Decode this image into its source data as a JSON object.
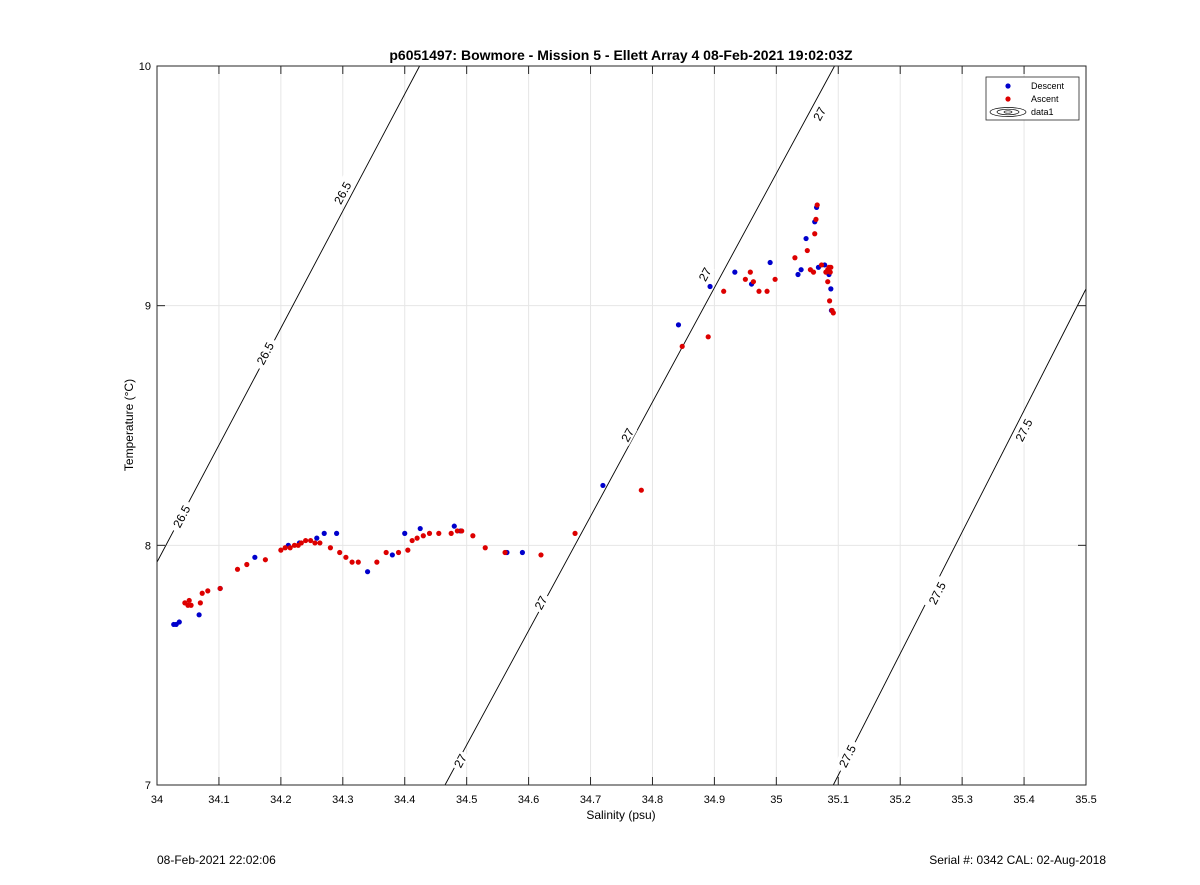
{
  "chart_data": {
    "type": "scatter",
    "title": "p6051497: Bowmore - Mission 5 - Ellett Array 4 08-Feb-2021 19:02:03Z",
    "xlabel": "Salinity (psu)",
    "ylabel": "Temperature (°C)",
    "xlim": [
      34,
      35.5
    ],
    "ylim": [
      7,
      10
    ],
    "xticks": [
      34,
      34.1,
      34.2,
      34.3,
      34.4,
      34.5,
      34.6,
      34.7,
      34.8,
      34.9,
      35,
      35.1,
      35.2,
      35.3,
      35.4,
      35.5
    ],
    "xtick_labels": [
      "34",
      "34.1",
      "34.2",
      "34.3",
      "34.4",
      "34.5",
      "34.6",
      "34.7",
      "34.8",
      "34.9",
      "35",
      "35.1",
      "35.2",
      "35.3",
      "35.4",
      "35.5"
    ],
    "yticks": [
      7,
      8,
      9,
      10
    ],
    "ytick_labels": [
      "7",
      "8",
      "9",
      "10"
    ],
    "grid": true,
    "legend_position": "top-right",
    "legend": [
      "Descent",
      "Ascent",
      "data1"
    ],
    "series": [
      {
        "name": "Descent",
        "color": "#0000cc",
        "points": [
          [
            34.027,
            7.67
          ],
          [
            34.031,
            7.67
          ],
          [
            34.036,
            7.68
          ],
          [
            34.068,
            7.71
          ],
          [
            34.102,
            7.82
          ],
          [
            34.158,
            7.95
          ],
          [
            34.212,
            8.0
          ],
          [
            34.23,
            8.01
          ],
          [
            34.258,
            8.03
          ],
          [
            34.27,
            8.05
          ],
          [
            34.29,
            8.05
          ],
          [
            34.34,
            7.89
          ],
          [
            34.38,
            7.96
          ],
          [
            34.4,
            8.05
          ],
          [
            34.425,
            8.07
          ],
          [
            34.48,
            8.08
          ],
          [
            34.49,
            8.06
          ],
          [
            34.565,
            7.97
          ],
          [
            34.59,
            7.97
          ],
          [
            34.72,
            8.25
          ],
          [
            34.842,
            8.92
          ],
          [
            34.893,
            9.08
          ],
          [
            34.933,
            9.14
          ],
          [
            34.96,
            9.09
          ],
          [
            34.99,
            9.18
          ],
          [
            35.035,
            9.13
          ],
          [
            35.04,
            9.15
          ],
          [
            35.048,
            9.28
          ],
          [
            35.062,
            9.35
          ],
          [
            35.065,
            9.41
          ],
          [
            35.068,
            9.16
          ],
          [
            35.078,
            9.17
          ],
          [
            35.085,
            9.13
          ],
          [
            35.088,
            9.07
          ],
          [
            35.089,
            8.98
          ]
        ]
      },
      {
        "name": "Ascent",
        "color": "#dd0000",
        "points": [
          [
            34.045,
            7.76
          ],
          [
            34.05,
            7.75
          ],
          [
            34.052,
            7.77
          ],
          [
            34.055,
            7.75
          ],
          [
            34.07,
            7.76
          ],
          [
            34.073,
            7.8
          ],
          [
            34.082,
            7.81
          ],
          [
            34.102,
            7.82
          ],
          [
            34.13,
            7.9
          ],
          [
            34.145,
            7.92
          ],
          [
            34.175,
            7.94
          ],
          [
            34.2,
            7.98
          ],
          [
            34.207,
            7.99
          ],
          [
            34.215,
            7.99
          ],
          [
            34.222,
            8.0
          ],
          [
            34.228,
            8.0
          ],
          [
            34.233,
            8.01
          ],
          [
            34.24,
            8.02
          ],
          [
            34.248,
            8.02
          ],
          [
            34.255,
            8.01
          ],
          [
            34.263,
            8.01
          ],
          [
            34.28,
            7.99
          ],
          [
            34.295,
            7.97
          ],
          [
            34.305,
            7.95
          ],
          [
            34.315,
            7.93
          ],
          [
            34.325,
            7.93
          ],
          [
            34.355,
            7.93
          ],
          [
            34.37,
            7.97
          ],
          [
            34.39,
            7.97
          ],
          [
            34.405,
            7.98
          ],
          [
            34.412,
            8.02
          ],
          [
            34.42,
            8.03
          ],
          [
            34.43,
            8.04
          ],
          [
            34.44,
            8.05
          ],
          [
            34.455,
            8.05
          ],
          [
            34.475,
            8.05
          ],
          [
            34.485,
            8.06
          ],
          [
            34.492,
            8.06
          ],
          [
            34.51,
            8.04
          ],
          [
            34.53,
            7.99
          ],
          [
            34.562,
            7.97
          ],
          [
            34.62,
            7.96
          ],
          [
            34.675,
            8.05
          ],
          [
            34.782,
            8.23
          ],
          [
            34.848,
            8.83
          ],
          [
            34.89,
            8.87
          ],
          [
            34.915,
            9.06
          ],
          [
            34.95,
            9.11
          ],
          [
            34.958,
            9.14
          ],
          [
            34.963,
            9.1
          ],
          [
            34.972,
            9.06
          ],
          [
            34.985,
            9.06
          ],
          [
            34.998,
            9.11
          ],
          [
            35.03,
            9.2
          ],
          [
            35.05,
            9.23
          ],
          [
            35.055,
            9.15
          ],
          [
            35.06,
            9.14
          ],
          [
            35.062,
            9.3
          ],
          [
            35.064,
            9.36
          ],
          [
            35.066,
            9.42
          ],
          [
            35.073,
            9.17
          ],
          [
            35.08,
            9.14
          ],
          [
            35.083,
            9.1
          ],
          [
            35.083,
            9.15
          ],
          [
            35.085,
            9.16
          ],
          [
            35.086,
            9.02
          ],
          [
            35.087,
            9.14
          ],
          [
            35.088,
            9.16
          ],
          [
            35.09,
            8.98
          ],
          [
            35.092,
            8.97
          ]
        ]
      }
    ],
    "contours": [
      {
        "level": "26.5",
        "from": [
          34.0,
          7.93
        ],
        "to": [
          34.424,
          10.0
        ]
      },
      {
        "level": "27",
        "from": [
          34.465,
          7.0
        ],
        "to": [
          35.094,
          10.0
        ]
      },
      {
        "level": "27.5",
        "from": [
          35.092,
          7.0
        ],
        "to": [
          35.5,
          9.07
        ]
      }
    ],
    "contour_labels": [
      {
        "text": "26.5",
        "x": 34.04,
        "y": 8.12
      },
      {
        "text": "26.5",
        "x": 34.175,
        "y": 8.8
      },
      {
        "text": "26.5",
        "x": 34.3,
        "y": 9.47
      },
      {
        "text": "27",
        "x": 34.49,
        "y": 7.1
      },
      {
        "text": "27",
        "x": 34.62,
        "y": 7.76
      },
      {
        "text": "27",
        "x": 34.76,
        "y": 8.46
      },
      {
        "text": "27",
        "x": 34.885,
        "y": 9.13
      },
      {
        "text": "27",
        "x": 35.07,
        "y": 9.8
      },
      {
        "text": "27.5",
        "x": 35.115,
        "y": 7.12
      },
      {
        "text": "27.5",
        "x": 35.26,
        "y": 7.8
      },
      {
        "text": "27.5",
        "x": 35.4,
        "y": 8.48
      }
    ]
  },
  "footer": {
    "left_text": "08-Feb-2021 22:02:06",
    "right_text": "Serial #: 0342  CAL: 02-Aug-2018"
  }
}
